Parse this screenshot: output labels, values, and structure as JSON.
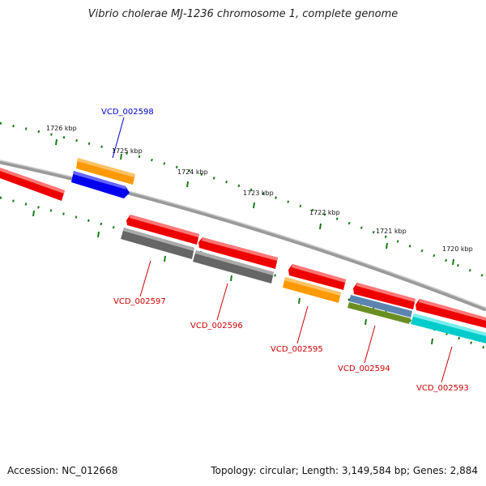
{
  "title": "Vibrio cholerae MJ-1236 chromosome 1, complete genome",
  "footer": {
    "accession": "Accession: NC_012668",
    "summary": "Topology: circular; Length: 3,149,584 bp; Genes: 2,884"
  },
  "ticks": [
    {
      "label": "1726 kbp"
    },
    {
      "label": "1725 kbp"
    },
    {
      "label": "1724 kbp"
    },
    {
      "label": "1723 kbp"
    },
    {
      "label": "1722 kbp"
    },
    {
      "label": "1721 kbp"
    },
    {
      "label": "1720 kbp"
    }
  ],
  "genes": [
    {
      "label": "VCD_002598",
      "color": "#0000cc"
    },
    {
      "label": "VCD_002597",
      "color": "#cc0000"
    },
    {
      "label": "VCD_002596",
      "color": "#cc0000"
    },
    {
      "label": "VCD_002595",
      "color": "#cc0000"
    },
    {
      "label": "VCD_002594",
      "color": "#cc0000"
    },
    {
      "label": "VCD_002593",
      "color": "#cc0000"
    }
  ],
  "colors": {
    "backbone": "#888888",
    "tick_dots": "#1a7a1a",
    "cds_red": "#ff0000",
    "cds_orange": "#ff9900",
    "cds_blue": "#0000ee",
    "cds_gray": "#666666",
    "cds_steelblue": "#5b84b1",
    "cds_olive": "#6b8e23",
    "cds_cyan": "#00cccc"
  }
}
